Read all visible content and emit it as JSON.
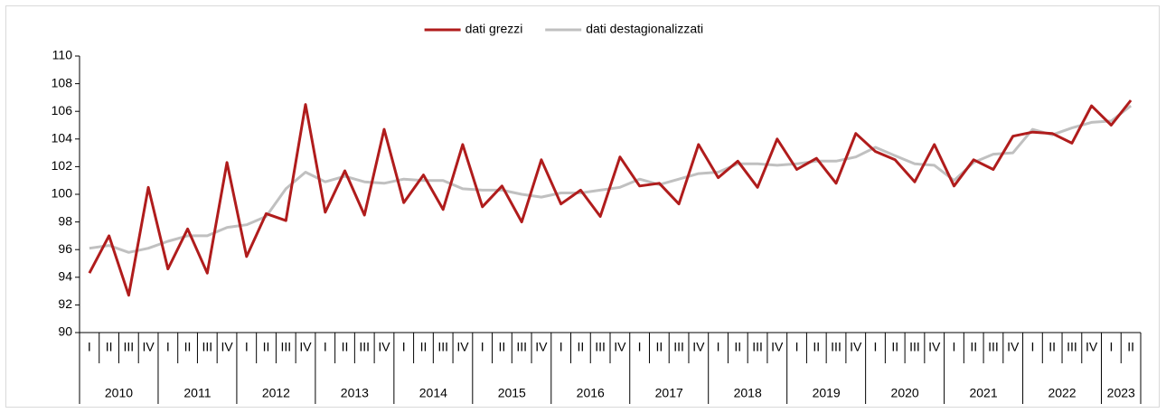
{
  "chart_data": {
    "type": "line",
    "groups": [
      {
        "label": "2010",
        "categories": [
          "I",
          "II",
          "III",
          "IV"
        ]
      },
      {
        "label": "2011",
        "categories": [
          "I",
          "II",
          "III",
          "IV"
        ]
      },
      {
        "label": "2012",
        "categories": [
          "I",
          "II",
          "III",
          "IV"
        ]
      },
      {
        "label": "2013",
        "categories": [
          "I",
          "II",
          "III",
          "IV"
        ]
      },
      {
        "label": "2014",
        "categories": [
          "I",
          "II",
          "III",
          "IV"
        ]
      },
      {
        "label": "2015",
        "categories": [
          "I",
          "II",
          "III",
          "IV"
        ]
      },
      {
        "label": "2016",
        "categories": [
          "I",
          "II",
          "III",
          "IV"
        ]
      },
      {
        "label": "2017",
        "categories": [
          "I",
          "II",
          "III",
          "IV"
        ]
      },
      {
        "label": "2018",
        "categories": [
          "I",
          "II",
          "III",
          "IV"
        ]
      },
      {
        "label": "2019",
        "categories": [
          "I",
          "II",
          "III",
          "IV"
        ]
      },
      {
        "label": "2020",
        "categories": [
          "I",
          "II",
          "III",
          "IV"
        ]
      },
      {
        "label": "2021",
        "categories": [
          "I",
          "II",
          "III",
          "IV"
        ]
      },
      {
        "label": "2022",
        "categories": [
          "I",
          "II",
          "III",
          "IV"
        ]
      },
      {
        "label": "2023",
        "categories": [
          "I",
          "II"
        ]
      }
    ],
    "series": [
      {
        "name": "dati grezzi",
        "color": "#b01c1c",
        "values": [
          94.3,
          97.0,
          92.7,
          100.5,
          94.6,
          97.5,
          94.3,
          102.3,
          95.5,
          98.6,
          98.1,
          106.5,
          98.7,
          101.7,
          98.5,
          104.7,
          99.4,
          101.4,
          98.9,
          103.6,
          99.1,
          100.6,
          98.0,
          102.5,
          99.3,
          100.3,
          98.4,
          102.7,
          100.6,
          100.8,
          99.3,
          103.6,
          101.2,
          102.4,
          100.5,
          104.0,
          101.8,
          102.6,
          100.8,
          104.4,
          103.1,
          102.5,
          100.9,
          103.6,
          100.6,
          102.5,
          101.8,
          104.2,
          104.5,
          104.4,
          103.7,
          106.4,
          105.0,
          106.8
        ]
      },
      {
        "name": "dati destagionalizzati",
        "color": "#c0c0c0",
        "values": [
          96.1,
          96.3,
          95.8,
          96.1,
          96.6,
          97.0,
          97.0,
          97.6,
          97.8,
          98.4,
          100.4,
          101.6,
          100.9,
          101.3,
          100.9,
          100.8,
          101.1,
          101.0,
          101.0,
          100.4,
          100.3,
          100.3,
          100.0,
          99.8,
          100.1,
          100.1,
          100.3,
          100.5,
          101.1,
          100.7,
          101.1,
          101.5,
          101.6,
          102.2,
          102.2,
          102.1,
          102.2,
          102.4,
          102.4,
          102.7,
          103.4,
          102.8,
          102.2,
          102.1,
          101.0,
          102.3,
          102.9,
          103.0,
          104.7,
          104.3,
          104.8,
          105.2,
          105.3,
          106.4
        ]
      }
    ],
    "ylim": [
      90,
      110
    ],
    "yticks": [
      90,
      92,
      94,
      96,
      98,
      100,
      102,
      104,
      106,
      108,
      110
    ],
    "grid": false,
    "legend": "top"
  }
}
